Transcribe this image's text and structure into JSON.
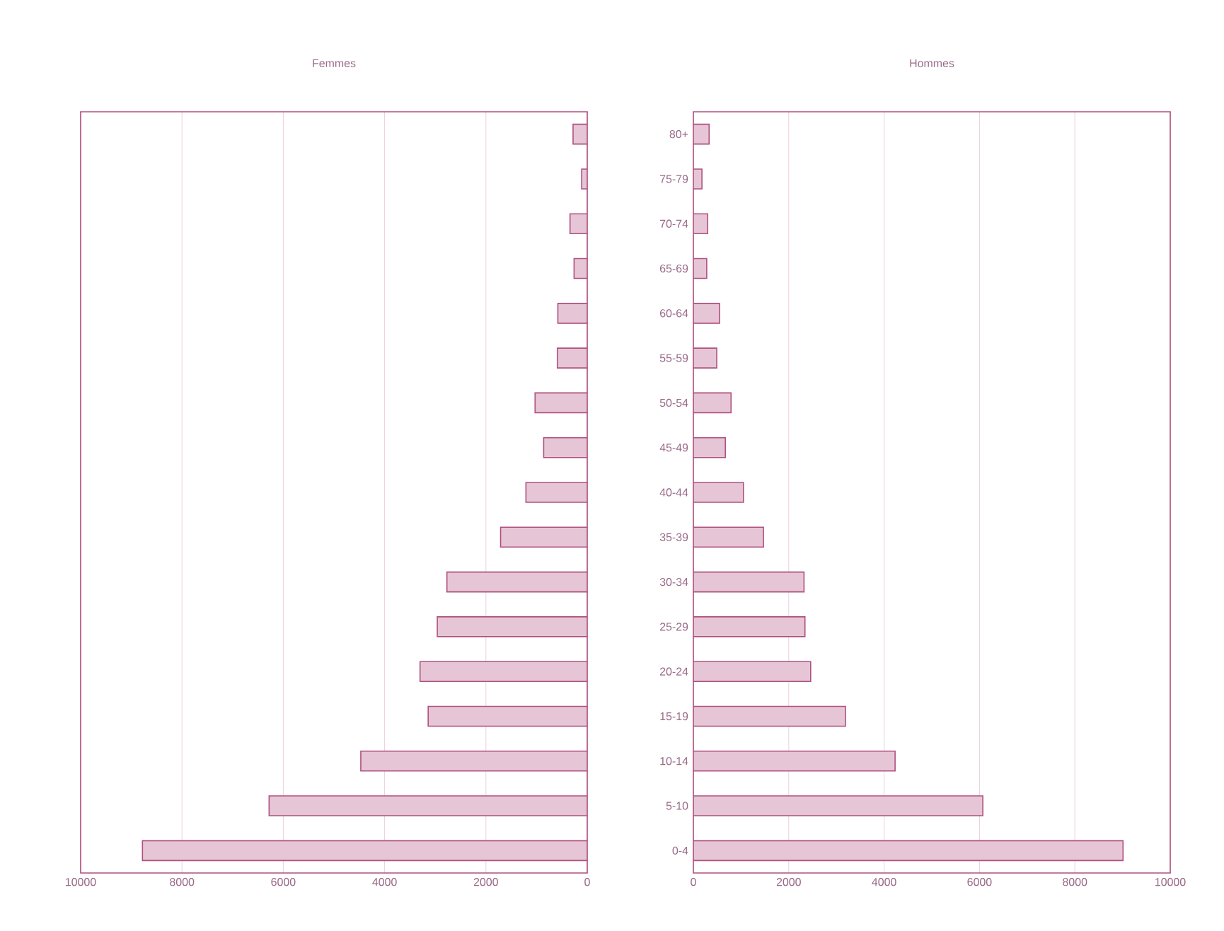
{
  "chart_data": [
    {
      "type": "bar",
      "orientation": "horizontal",
      "title": "Femmes",
      "categories": [
        null,
        null,
        null,
        null,
        null,
        null,
        null,
        null,
        null,
        null,
        null,
        null,
        null,
        null,
        null,
        null,
        null
      ],
      "values": [
        280,
        110,
        340,
        260,
        580,
        590,
        1030,
        860,
        1210,
        1710,
        2770,
        2960,
        3300,
        3140,
        4470,
        6280,
        8780
      ],
      "color": "#e6c6d6",
      "xlim": [
        10000,
        0
      ],
      "xticks": [
        10000,
        8000,
        6000,
        4000,
        2000,
        0
      ],
      "grid": "x",
      "tick_labels": "x"
    },
    {
      "type": "bar",
      "orientation": "horizontal",
      "title": "Hommes",
      "categories": [
        "80+",
        "75-79",
        "70-74",
        "65-69",
        "60-64",
        "55-59",
        "50-54",
        "45-49",
        "40-44",
        "35-39",
        "30-34",
        "25-29",
        "20-24",
        "15-19",
        "10-14",
        "5-10",
        "0-4"
      ],
      "values": [
        330,
        180,
        300,
        280,
        550,
        490,
        790,
        670,
        1050,
        1470,
        2320,
        2340,
        2460,
        3190,
        4230,
        6070,
        9010
      ],
      "color": "#e6c6d6",
      "xlim": [
        0,
        10000
      ],
      "xticks": [
        0,
        2000,
        4000,
        6000,
        8000,
        10000
      ],
      "grid": "x"
    }
  ]
}
